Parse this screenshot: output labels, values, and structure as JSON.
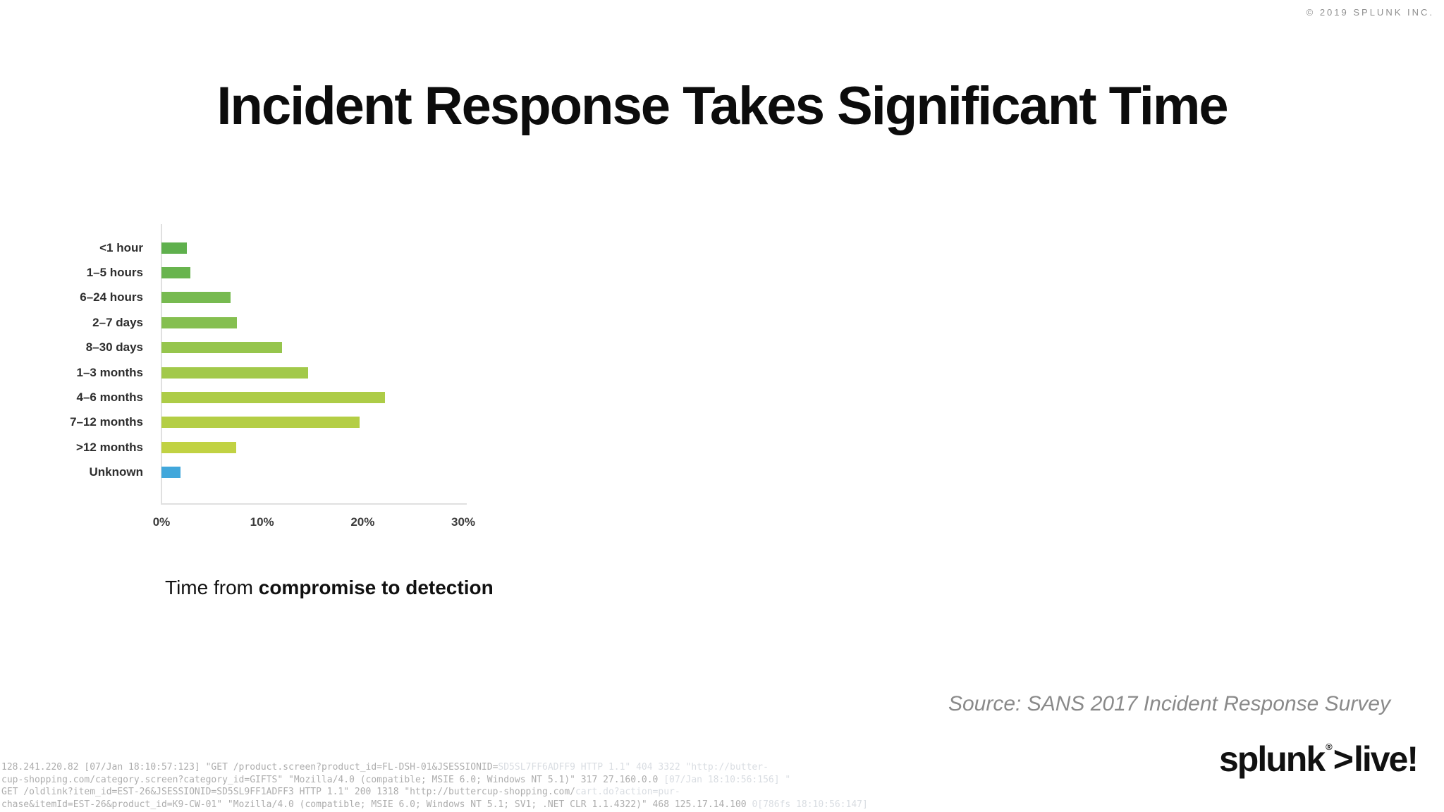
{
  "page": {
    "copyright": "© 2019 SPLUNK INC.",
    "title": "Incident Response Takes Significant Time",
    "source": "Source: SANS 2017 Incident Response Survey"
  },
  "logo": {
    "brand": "splunk",
    "registered_mark": "®",
    "gt": ">",
    "suffix": "live!"
  },
  "chart_data": {
    "type": "bar",
    "orientation": "horizontal",
    "title": "",
    "caption_prefix": "Time from ",
    "caption_bold": "compromise to detection",
    "categories": [
      "<1 hour",
      "1–5 hours",
      "6–24 hours",
      "2–7 days",
      "8–30 days",
      "1–3 months",
      "4–6 months",
      "7–12 months",
      ">12 months",
      "Unknown"
    ],
    "values": [
      2.5,
      2.9,
      6.9,
      7.5,
      12.0,
      14.6,
      22.2,
      19.7,
      7.4,
      1.9
    ],
    "bar_colors": [
      "#5fb04d",
      "#68b44e",
      "#77ba50",
      "#85bf50",
      "#96c54d",
      "#a2c94a",
      "#adcc47",
      "#b4ce45",
      "#c1d243",
      "#41a7db"
    ],
    "x_ticks": [
      "0%",
      "10%",
      "20%",
      "30%"
    ],
    "x_tick_values": [
      0,
      10,
      20,
      30
    ],
    "xlim": [
      0,
      30
    ],
    "xlabel": "",
    "ylabel": "",
    "grid": false,
    "legend": false,
    "axis_color": "#e0e0e0"
  },
  "log": {
    "tones": {
      "dim": "#adadad",
      "faint": "#d9dde2"
    },
    "lines": [
      [
        {
          "tone": "dim",
          "text": "128.241.220.82 [07/Jan 18:10:57:123] \"GET /product.screen?product_id=FL-DSH-01&JSESSIONID="
        },
        {
          "tone": "faint",
          "text": "SD5SL7FF6ADFF9 HTTP 1.1\" 404 3322 \"http://butter-"
        }
      ],
      [
        {
          "tone": "dim",
          "text": "cup-shopping.com/category.screen?category_id=GIFTS\" \"Mozilla/4.0 (compatible; MSIE 6.0; Windows NT 5.1)\" 317 27.160.0.0 "
        },
        {
          "tone": "faint",
          "text": "[07/Jan 18:10:56:156] \""
        }
      ],
      [
        {
          "tone": "dim",
          "text": "GET /oldlink?item_id=EST-26&JSESSIONID=SD5SL9FF1ADFF3 HTTP 1.1\" 200 1318 \"http://buttercup-shopping.com/"
        },
        {
          "tone": "faint",
          "text": "cart.do?action=pur-"
        }
      ],
      [
        {
          "tone": "dim",
          "text": "chase&itemId=EST-26&product_id=K9-CW-01\" \"Mozilla/4.0 (compatible; MSIE 6.0; Windows NT 5.1; SV1; .NET CLR 1.1.4322)\" 468 125.17.14.100 "
        },
        {
          "tone": "faint",
          "text": "0[786fs 18:10:56:147]"
        }
      ]
    ]
  }
}
